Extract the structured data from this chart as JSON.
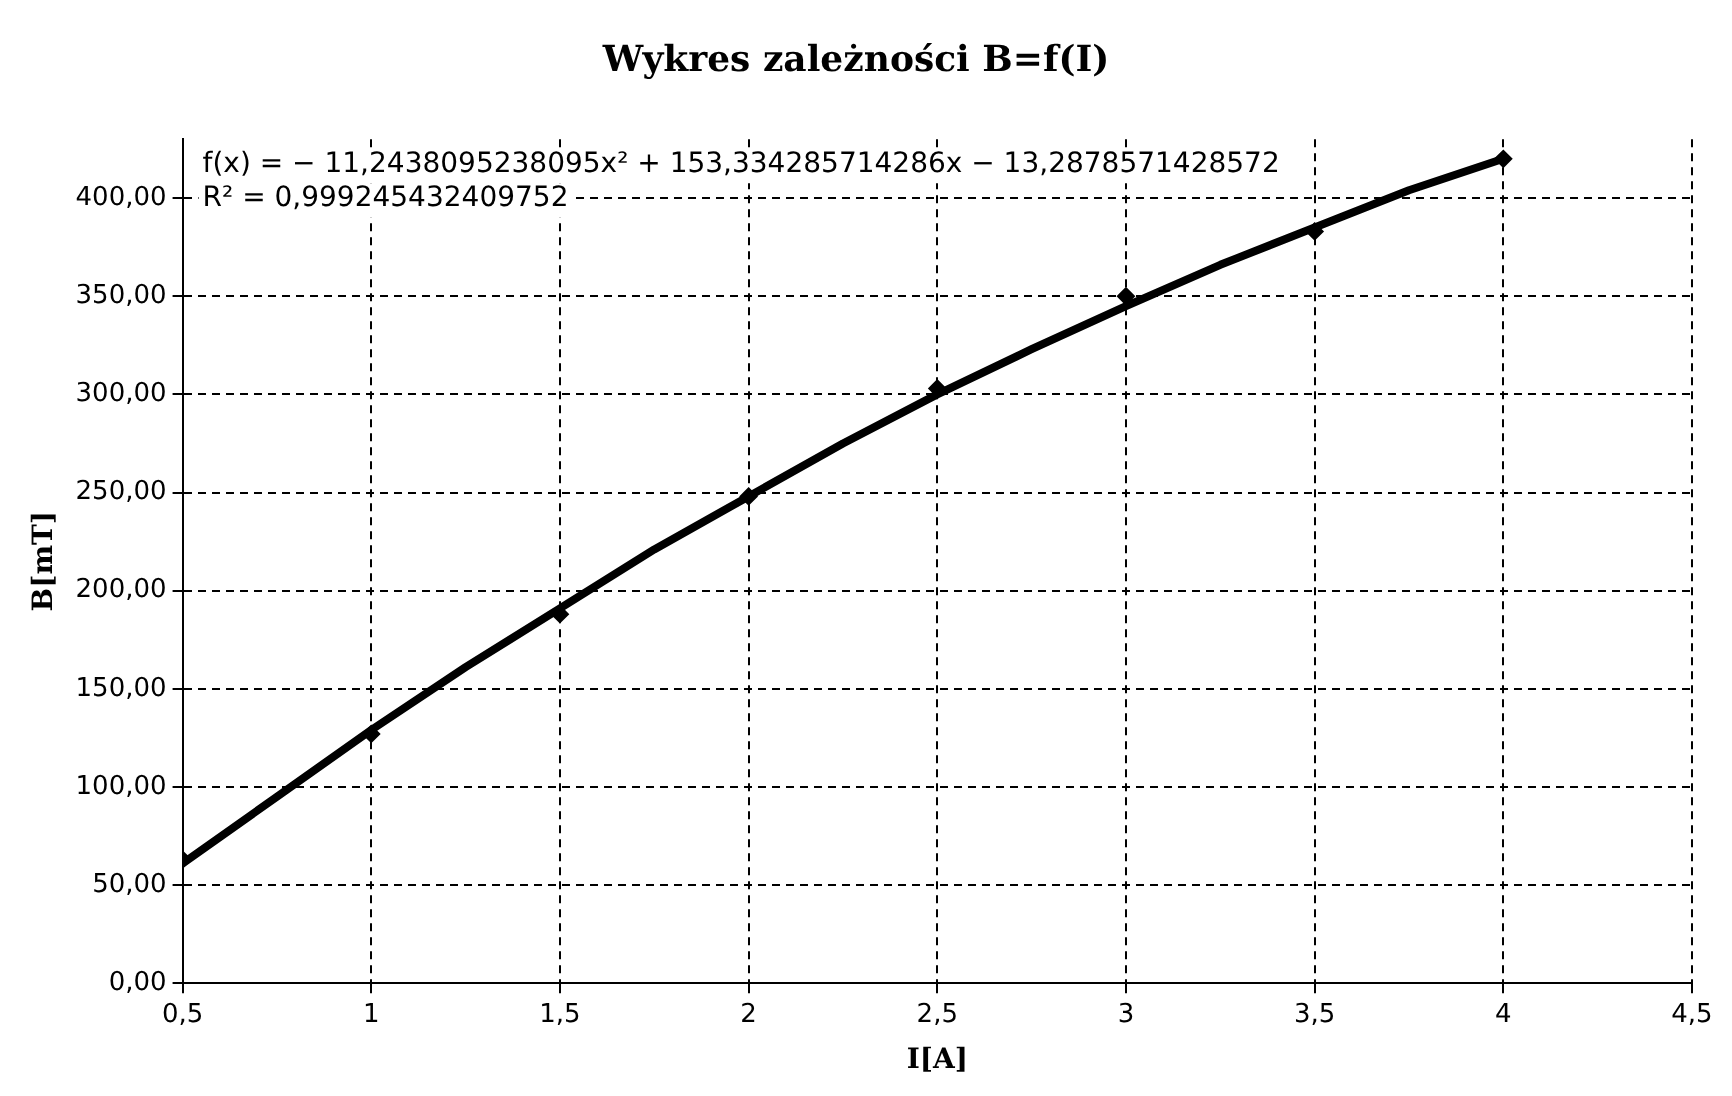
{
  "chart_data": {
    "type": "scatter",
    "title": "Wykres zależności B=f(I)",
    "xlabel": "I[A]",
    "ylabel": "B[mT]",
    "xlim": [
      0.5,
      4.5
    ],
    "xticks": [
      {
        "value": 0.5,
        "label": "0,5"
      },
      1,
      {
        "value": 1.5,
        "label": "1,5"
      },
      2,
      {
        "value": 2.5,
        "label": "2,5"
      },
      3,
      {
        "value": 3.5,
        "label": "3,5"
      },
      4,
      {
        "value": 4.5,
        "label": "4,5"
      }
    ],
    "ylim": [
      0,
      430
    ],
    "yticks": [
      {
        "value": 0,
        "label": "0,00"
      },
      {
        "value": 50,
        "label": "50,00"
      },
      {
        "value": 100,
        "label": "100,00"
      },
      {
        "value": 150,
        "label": "150,00"
      },
      {
        "value": 200,
        "label": "200,00"
      },
      {
        "value": 250,
        "label": "250,00"
      },
      {
        "value": 300,
        "label": "300,00"
      },
      {
        "value": 350,
        "label": "350,00"
      },
      {
        "value": 400,
        "label": "400,00"
      }
    ],
    "grid": true,
    "legend": false,
    "series": [
      {
        "marker": "diamond",
        "color": "#000000",
        "x": [
          0.5,
          1,
          1.5,
          2,
          2.5,
          3,
          3.5,
          4
        ],
        "values": [
          63,
          127,
          188,
          248,
          303,
          350,
          383,
          420
        ]
      },
      {
        "type": "line",
        "marker": "none",
        "color": "#000000",
        "x": [
          0.5,
          0.75,
          1,
          1.25,
          1.5,
          1.75,
          2,
          2.25,
          2.5,
          2.75,
          3,
          3.25,
          3.5,
          3.75,
          4
        ],
        "values": [
          61,
          95,
          129,
          161,
          191,
          221,
          248,
          275,
          300,
          323,
          345,
          366,
          385,
          404,
          420
        ]
      }
    ],
    "annotations": [
      "f(x) = − 11,2438095238095x² + 153,334285714286x − 13,2878571428572",
      "R² = 0,999245432409752"
    ]
  }
}
